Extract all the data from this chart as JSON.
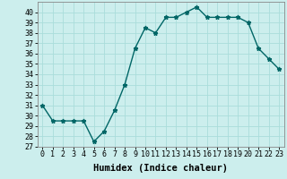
{
  "x": [
    0,
    1,
    2,
    3,
    4,
    5,
    6,
    7,
    8,
    9,
    10,
    11,
    12,
    13,
    14,
    15,
    16,
    17,
    18,
    19,
    20,
    21,
    22,
    23
  ],
  "y": [
    31,
    29.5,
    29.5,
    29.5,
    29.5,
    27.5,
    28.5,
    30.5,
    33,
    36.5,
    38.5,
    38,
    39.5,
    39.5,
    40,
    40.5,
    39.5,
    39.5,
    39.5,
    39.5,
    39,
    36.5,
    35.5,
    34.5
  ],
  "xlabel": "Humidex (Indice chaleur)",
  "ylim": [
    27,
    41
  ],
  "xlim": [
    -0.5,
    23.5
  ],
  "bg_color": "#cceeed",
  "grid_color": "#aadddb",
  "line_color": "#006666",
  "marker": "*",
  "marker_size": 3.5,
  "line_width": 1.0,
  "yticks": [
    27,
    28,
    29,
    30,
    31,
    32,
    33,
    34,
    35,
    36,
    37,
    38,
    39,
    40
  ],
  "xticks": [
    0,
    1,
    2,
    3,
    4,
    5,
    6,
    7,
    8,
    9,
    10,
    11,
    12,
    13,
    14,
    15,
    16,
    17,
    18,
    19,
    20,
    21,
    22,
    23
  ],
  "xtick_labels": [
    "0",
    "1",
    "2",
    "3",
    "4",
    "5",
    "6",
    "7",
    "8",
    "9",
    "10",
    "11",
    "12",
    "13",
    "14",
    "15",
    "16",
    "17",
    "18",
    "19",
    "20",
    "21",
    "22",
    "23"
  ],
  "xlabel_fontsize": 7.5,
  "tick_fontsize": 6.0
}
